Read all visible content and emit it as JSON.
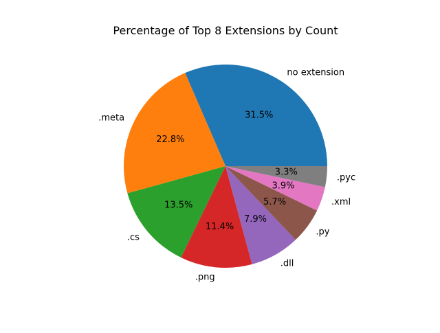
{
  "chart_data": {
    "type": "pie",
    "title": "Percentage of Top 8 Extensions by Count",
    "labels": [
      "no extension",
      ".meta",
      ".cs",
      ".png",
      ".dll",
      ".py",
      ".xml",
      ".pyc"
    ],
    "values": [
      31.5,
      22.8,
      13.5,
      11.4,
      7.9,
      5.7,
      3.9,
      3.3
    ],
    "percent_labels": [
      "31.5%",
      "22.8%",
      "13.5%",
      "11.4%",
      "7.9%",
      "5.7%",
      "3.9%",
      "3.3%"
    ],
    "colors": [
      "#1f77b4",
      "#ff7f0e",
      "#2ca02c",
      "#d62728",
      "#9467bd",
      "#8c564b",
      "#e377c2",
      "#7f7f7f"
    ],
    "start_angle_deg": 0,
    "direction": "counterclockwise"
  }
}
